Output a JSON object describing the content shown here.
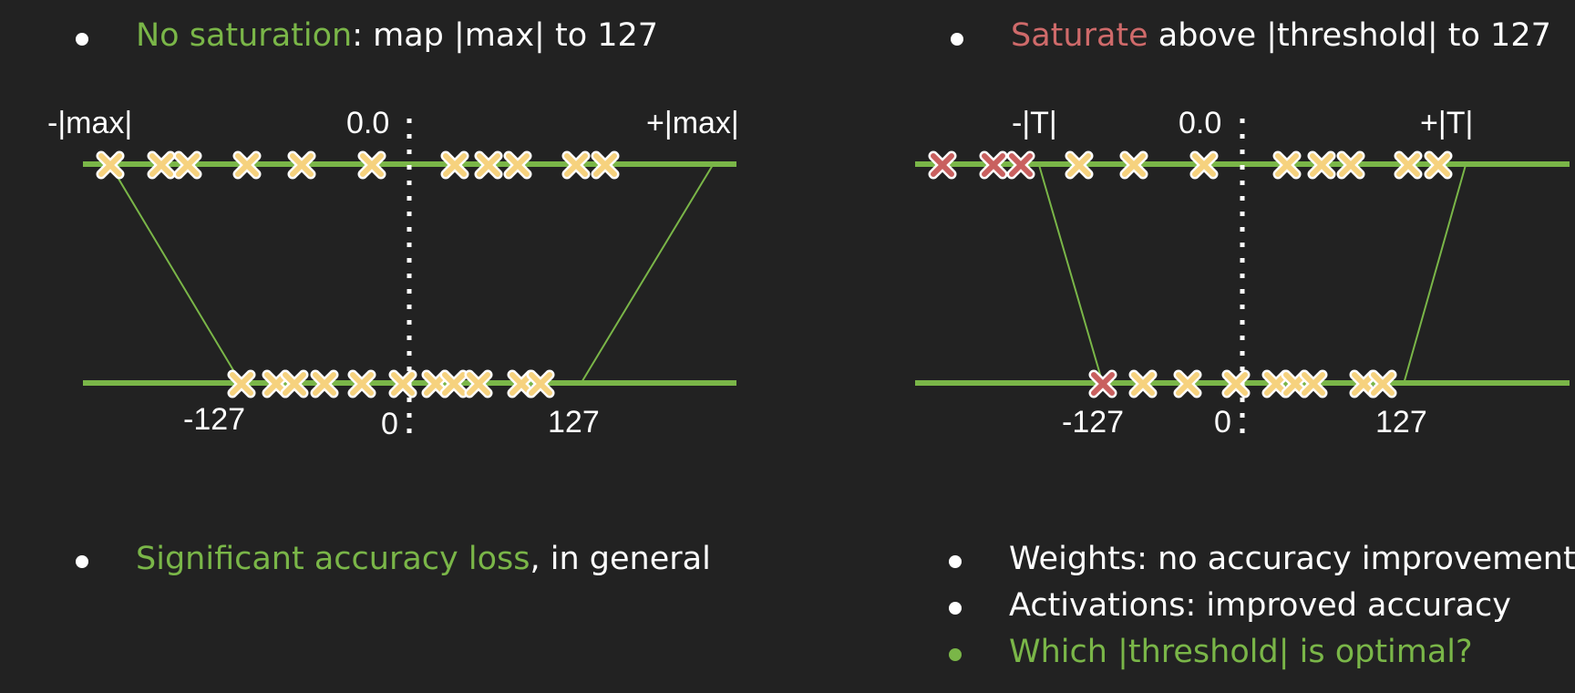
{
  "left_panel": {
    "heading": {
      "highlight": "No saturation",
      "rest": ": map |max| to 127"
    },
    "top_labels": {
      "neg": "-|max|",
      "zero": "0.0",
      "pos": "+|max|"
    },
    "bottom_labels": {
      "neg": "-127",
      "zero": "0",
      "pos": "127"
    },
    "footer": {
      "highlight": "Significant accuracy loss",
      "rest": ", in general"
    }
  },
  "right_panel": {
    "heading": {
      "highlight": "Saturate",
      "rest": " above |threshold| to 127"
    },
    "top_labels": {
      "neg": "-|T|",
      "zero": "0.0",
      "pos": "+|T|"
    },
    "bottom_labels": {
      "neg": "-127",
      "zero": "0",
      "pos": "127"
    },
    "footer": [
      {
        "text": "Weights: no accuracy improvement",
        "style": "white"
      },
      {
        "text": "Activations: improved accuracy",
        "style": "white"
      },
      {
        "text": "Which |threshold| is optimal?",
        "style": "green"
      }
    ]
  },
  "colors": {
    "background": "#222222",
    "accent_green": "#7ab648",
    "saturate_red": "#cf6a6a",
    "marker_yellow": "#f6d27e",
    "marker_red": "#c9605f"
  }
}
